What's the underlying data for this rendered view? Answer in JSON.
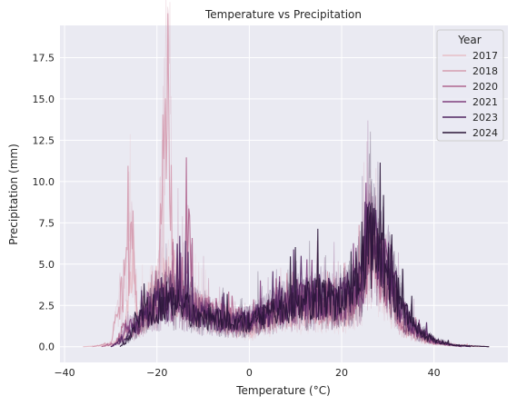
{
  "chart_data": {
    "type": "line",
    "title": "Temperature vs Precipitation",
    "xlabel": "Temperature (°C)",
    "ylabel": "Precipitation (mm)",
    "xlim": [
      -41,
      56
    ],
    "ylim": [
      -0.95,
      19.45
    ],
    "xticks": [
      -40,
      -20,
      0,
      20,
      40
    ],
    "xtick_labels": [
      "−40",
      "−20",
      "0",
      "20",
      "40"
    ],
    "yticks": [
      0,
      2.5,
      5,
      7.5,
      10,
      12.5,
      15,
      17.5
    ],
    "ytick_labels": [
      "0.0",
      "2.5",
      "5.0",
      "7.5",
      "10.0",
      "12.5",
      "15.0",
      "17.5"
    ],
    "grid": true,
    "legend": {
      "title": "Year",
      "position": "top-right",
      "entries": [
        "2017",
        "2018",
        "2020",
        "2021",
        "2023",
        "2024"
      ]
    },
    "series": [
      {
        "name": "2017",
        "color": "#e8bfc8",
        "points": [
          [
            -36,
            0
          ],
          [
            -30,
            0.1
          ],
          [
            -27,
            0.5
          ],
          [
            -25.5,
            6.1
          ],
          [
            -24,
            1.5
          ],
          [
            -21,
            3.2
          ],
          [
            -17.5,
            4.0
          ],
          [
            -15,
            3.0
          ],
          [
            -12,
            2.2
          ],
          [
            -5,
            1.2
          ],
          [
            0,
            0.9
          ],
          [
            5,
            1.5
          ],
          [
            10,
            2.0
          ],
          [
            15,
            2.0
          ],
          [
            20,
            1.8
          ],
          [
            24,
            2.8
          ],
          [
            26,
            6.8
          ],
          [
            28,
            4.2
          ],
          [
            30,
            3.6
          ],
          [
            33,
            1.2
          ],
          [
            36,
            0.6
          ],
          [
            40,
            0.2
          ],
          [
            45,
            0.05
          ],
          [
            50,
            0
          ]
        ]
      },
      {
        "name": "2018",
        "color": "#d59cb0",
        "points": [
          [
            -34,
            0
          ],
          [
            -30,
            0.2
          ],
          [
            -25.5,
            6.0
          ],
          [
            -24,
            1.2
          ],
          [
            -20,
            2.5
          ],
          [
            -17.5,
            18.5
          ],
          [
            -16.5,
            3.0
          ],
          [
            -12,
            2.4
          ],
          [
            -5,
            1.6
          ],
          [
            0,
            1.2
          ],
          [
            5,
            1.8
          ],
          [
            10,
            2.4
          ],
          [
            15,
            2.3
          ],
          [
            20,
            2.2
          ],
          [
            24,
            3.2
          ],
          [
            26,
            6.2
          ],
          [
            28,
            4.6
          ],
          [
            30,
            3.8
          ],
          [
            33,
            1.5
          ],
          [
            36,
            0.7
          ],
          [
            40,
            0.3
          ],
          [
            45,
            0.1
          ],
          [
            52,
            0
          ]
        ]
      },
      {
        "name": "2020",
        "color": "#b0668f",
        "points": [
          [
            -32,
            0
          ],
          [
            -29,
            0.2
          ],
          [
            -27,
            1.2
          ],
          [
            -25,
            0.8
          ],
          [
            -22,
            2.0
          ],
          [
            -20,
            2.8
          ],
          [
            -18,
            3.4
          ],
          [
            -16,
            3.0
          ],
          [
            -13,
            6.2
          ],
          [
            -12,
            2.0
          ],
          [
            -8,
            2.2
          ],
          [
            -5,
            1.8
          ],
          [
            0,
            1.6
          ],
          [
            5,
            2.0
          ],
          [
            10,
            2.5
          ],
          [
            15,
            2.8
          ],
          [
            20,
            2.6
          ],
          [
            24,
            3.4
          ],
          [
            26,
            6.0
          ],
          [
            28,
            5.1
          ],
          [
            30,
            4.2
          ],
          [
            33,
            1.7
          ],
          [
            36,
            0.8
          ],
          [
            40,
            0.3
          ],
          [
            46,
            0
          ]
        ]
      },
      {
        "name": "2021",
        "color": "#803f7e",
        "points": [
          [
            -30,
            0
          ],
          [
            -28,
            0.3
          ],
          [
            -26,
            1.5
          ],
          [
            -24,
            1.0
          ],
          [
            -22,
            2.6
          ],
          [
            -20,
            2.2
          ],
          [
            -18,
            3.0
          ],
          [
            -16,
            2.4
          ],
          [
            -13,
            2.5
          ],
          [
            -10,
            2.0
          ],
          [
            -5,
            1.4
          ],
          [
            0,
            1.5
          ],
          [
            5,
            2.1
          ],
          [
            10,
            2.6
          ],
          [
            15,
            2.9
          ],
          [
            20,
            2.7
          ],
          [
            24,
            3.6
          ],
          [
            26,
            6.4
          ],
          [
            28,
            5.2
          ],
          [
            30,
            4.4
          ],
          [
            33,
            2.1
          ],
          [
            36,
            1.0
          ],
          [
            40,
            0.3
          ],
          [
            46,
            0
          ]
        ]
      },
      {
        "name": "2023",
        "color": "#4f2461",
        "points": [
          [
            -30,
            0
          ],
          [
            -27,
            0.4
          ],
          [
            -24,
            1.6
          ],
          [
            -22,
            2.0
          ],
          [
            -20,
            2.6
          ],
          [
            -18,
            2.4
          ],
          [
            -15,
            3.0
          ],
          [
            -12,
            2.2
          ],
          [
            -8,
            1.8
          ],
          [
            -4,
            1.5
          ],
          [
            0,
            1.6
          ],
          [
            5,
            2.2
          ],
          [
            10,
            2.7
          ],
          [
            15,
            3.1
          ],
          [
            20,
            2.9
          ],
          [
            24,
            3.8
          ],
          [
            26,
            7.0
          ],
          [
            28,
            5.4
          ],
          [
            30,
            4.6
          ],
          [
            33,
            2.3
          ],
          [
            36,
            1.0
          ],
          [
            40,
            0.4
          ],
          [
            44,
            0.1
          ],
          [
            48,
            0
          ]
        ]
      },
      {
        "name": "2024",
        "color": "#2a1538",
        "points": [
          [
            -28,
            0
          ],
          [
            -26,
            0.5
          ],
          [
            -24,
            1.5
          ],
          [
            -22,
            2.2
          ],
          [
            -20,
            2.4
          ],
          [
            -18,
            2.8
          ],
          [
            -15,
            2.6
          ],
          [
            -12,
            2.0
          ],
          [
            -8,
            1.7
          ],
          [
            -4,
            1.4
          ],
          [
            0,
            1.5
          ],
          [
            5,
            2.1
          ],
          [
            10,
            2.5
          ],
          [
            15,
            2.9
          ],
          [
            20,
            2.8
          ],
          [
            24,
            3.9
          ],
          [
            26,
            6.5
          ],
          [
            28,
            5.5
          ],
          [
            30,
            4.8
          ],
          [
            33,
            2.4
          ],
          [
            36,
            1.1
          ],
          [
            40,
            0.4
          ],
          [
            44,
            0.1
          ],
          [
            52,
            0
          ]
        ]
      }
    ]
  }
}
